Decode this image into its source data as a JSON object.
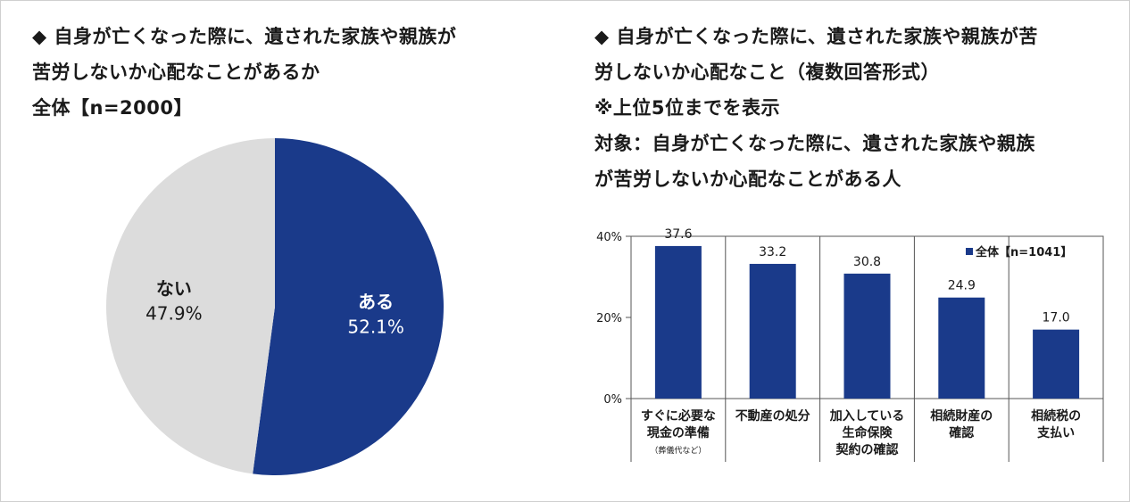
{
  "left": {
    "title_lines": [
      "◆ 自身が亡くなった際に、遺された家族や親族が",
      "苦労しないか心配なことがあるか",
      "全体【n=2000】"
    ]
  },
  "right": {
    "title_lines": [
      "◆ 自身が亡くなった際に、遺された家族や親族が苦",
      "労しないか心配なこと（複数回答形式）",
      "※上位5位までを表示",
      "対象：自身が亡くなった際に、遺された家族や親族",
      "が苦労しないか心配なことがある人"
    ]
  },
  "chart_data": [
    {
      "type": "pie",
      "slices": [
        {
          "label": "ある",
          "value": 52.1,
          "value_label": "52.1%",
          "color": "#1a3a8a"
        },
        {
          "label": "ない",
          "value": 47.9,
          "value_label": "47.9%",
          "color": "#dcdcdc"
        }
      ]
    },
    {
      "type": "bar",
      "categories": [
        {
          "lines": [
            "すぐに必要な",
            "現金の準備"
          ],
          "note": "（葬儀代など）"
        },
        {
          "lines": [
            "不動産の処分"
          ],
          "note": ""
        },
        {
          "lines": [
            "加入している",
            "生命保険",
            "契約の確認"
          ],
          "note": ""
        },
        {
          "lines": [
            "相続財産の",
            "確認"
          ],
          "note": ""
        },
        {
          "lines": [
            "相続税の",
            "支払い"
          ],
          "note": ""
        }
      ],
      "series": [
        {
          "name": "全体【n=1041】",
          "values": [
            37.6,
            33.2,
            30.8,
            24.9,
            17.0
          ],
          "value_labels": [
            "37.6",
            "33.2",
            "30.8",
            "24.9",
            "17.0"
          ],
          "color": "#1a3a8a"
        }
      ],
      "ylim": [
        0,
        40
      ],
      "yticks": [
        0,
        20,
        40
      ],
      "ytick_labels": [
        "0%",
        "20%",
        "40%"
      ],
      "legend_position": "top-right"
    }
  ]
}
